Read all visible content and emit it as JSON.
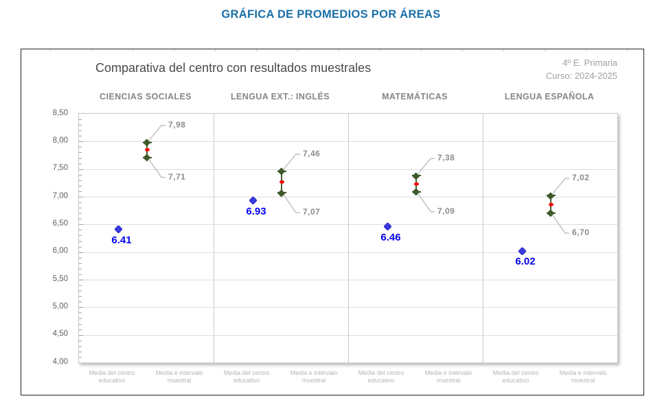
{
  "page": {
    "title": "GRÁFICA DE PROMEDIOS POR ÁREAS"
  },
  "chart_data": {
    "type": "scatter",
    "title": "Comparativa del centro con resultados muestrales",
    "meta": {
      "grade": "4º E. Primaria",
      "course": "Curso: 2024-2025"
    },
    "ylim": [
      4.0,
      8.5
    ],
    "ytick_step": 0.5,
    "ytick_labels": [
      "8,50",
      "8,00",
      "7,50",
      "7,00",
      "6,50",
      "6,00",
      "5,50",
      "5,00",
      "4,50",
      "4,00"
    ],
    "x_categories": [
      "Media del centro educativo",
      "Media e intervalo muestral"
    ],
    "x_category_lines": [
      [
        "Media del centro",
        "educativo"
      ],
      [
        "Media e intervalo",
        "muestral"
      ]
    ],
    "panels": [
      {
        "area": "CIENCIAS SOCIALES",
        "center_mean": 6.41,
        "center_label": "6.41",
        "interval_high": 7.98,
        "interval_high_label": "7,98",
        "interval_low": 7.71,
        "interval_low_label": "7,71"
      },
      {
        "area": "LENGUA EXT.: INGLÉS",
        "center_mean": 6.93,
        "center_label": "6.93",
        "interval_high": 7.46,
        "interval_high_label": "7,46",
        "interval_low": 7.07,
        "interval_low_label": "7,07"
      },
      {
        "area": "MATEMÁTICAS",
        "center_mean": 6.46,
        "center_label": "6.46",
        "interval_high": 7.38,
        "interval_high_label": "7,38",
        "interval_low": 7.09,
        "interval_low_label": "7,09"
      },
      {
        "area": "LENGUA ESPAÑOLA",
        "center_mean": 6.02,
        "center_label": "6.02",
        "interval_high": 7.02,
        "interval_high_label": "7,02",
        "interval_low": 6.7,
        "interval_low_label": "6,70"
      }
    ],
    "colors": {
      "page_title": "#1a6fa8",
      "center_point": "#3a3ae0",
      "center_label": "#0202f0",
      "interval_marker": "#3f5a28",
      "interval_mean": "#f70707",
      "callout_line": "#bdbdbd",
      "value_label": "#8c8c8c",
      "grid": "#dcdcdc"
    }
  }
}
